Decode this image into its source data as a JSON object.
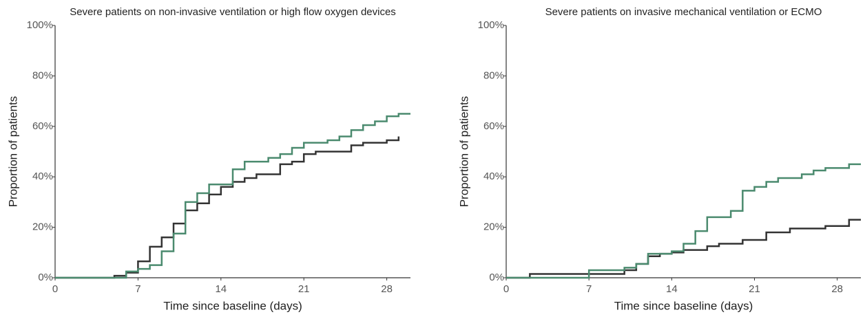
{
  "chart_data": [
    {
      "type": "step",
      "title": "Severe patients on non-invasive ventilation or high flow oxygen devices",
      "x_label": "Time since baseline (days)",
      "y_label": "Proportion of patients",
      "xlim": [
        0,
        30
      ],
      "xticks": [
        0,
        7,
        14,
        21,
        28
      ],
      "ylim": [
        0,
        100
      ],
      "yticks": [
        {
          "value": 0,
          "label": "0%"
        },
        {
          "value": 20,
          "label": "20%"
        },
        {
          "value": 40,
          "label": "40%"
        },
        {
          "value": 60,
          "label": "60%"
        },
        {
          "value": 80,
          "label": "80%"
        },
        {
          "value": 100,
          "label": "100%"
        }
      ],
      "series": [
        {
          "color": "#333333",
          "x": [
            0,
            5,
            6,
            7,
            8,
            9,
            10,
            11,
            12,
            13,
            14,
            15,
            16,
            17,
            19,
            20,
            21,
            22,
            25,
            26,
            28,
            29
          ],
          "values": [
            0,
            0.8,
            2,
            6.5,
            12.3,
            16,
            21.5,
            26.7,
            29.5,
            33,
            36,
            38,
            39.5,
            41,
            45,
            46,
            49,
            50,
            52.5,
            53.5,
            54.5,
            56
          ]
        },
        {
          "color": "#4a8a6e",
          "x": [
            0,
            6,
            7,
            8,
            9,
            10,
            11,
            12,
            13,
            15,
            16,
            18,
            19,
            20,
            21,
            23,
            24,
            25,
            26,
            27,
            28,
            29,
            30
          ],
          "values": [
            0,
            2.5,
            3.5,
            5,
            10.5,
            17.5,
            30,
            33.5,
            37,
            43,
            46,
            47.5,
            49,
            51.5,
            53.5,
            54.5,
            56,
            58.5,
            60.5,
            62,
            64,
            65,
            65
          ]
        }
      ]
    },
    {
      "type": "step",
      "title": "Severe patients on invasive mechanical ventilation or ECMO",
      "x_label": "Time since baseline (days)",
      "y_label": "Proportion of patients",
      "xlim": [
        0,
        30
      ],
      "xticks": [
        0,
        7,
        14,
        21,
        28
      ],
      "ylim": [
        0,
        100
      ],
      "yticks": [
        {
          "value": 0,
          "label": "0%"
        },
        {
          "value": 20,
          "label": "20%"
        },
        {
          "value": 40,
          "label": "40%"
        },
        {
          "value": 60,
          "label": "60%"
        },
        {
          "value": 80,
          "label": "80%"
        },
        {
          "value": 100,
          "label": "100%"
        }
      ],
      "series": [
        {
          "color": "#333333",
          "x": [
            0,
            2,
            10,
            11,
            12,
            13,
            14,
            15,
            17,
            18,
            20,
            22,
            24,
            27,
            29,
            30
          ],
          "values": [
            0,
            1.5,
            3,
            5.5,
            8.5,
            9.5,
            10,
            11,
            12.5,
            13.5,
            15,
            18,
            19.5,
            20.5,
            23,
            23
          ]
        },
        {
          "color": "#4a8a6e",
          "x": [
            0,
            7,
            10,
            11,
            12,
            14,
            15,
            16,
            17,
            19,
            20,
            21,
            22,
            23,
            25,
            26,
            27,
            29,
            30
          ],
          "values": [
            0,
            3,
            4,
            5.5,
            9.5,
            10.5,
            13.5,
            18.5,
            24,
            26.5,
            34.5,
            36,
            38,
            39.5,
            41,
            42.5,
            43.5,
            45,
            45
          ]
        }
      ]
    }
  ]
}
